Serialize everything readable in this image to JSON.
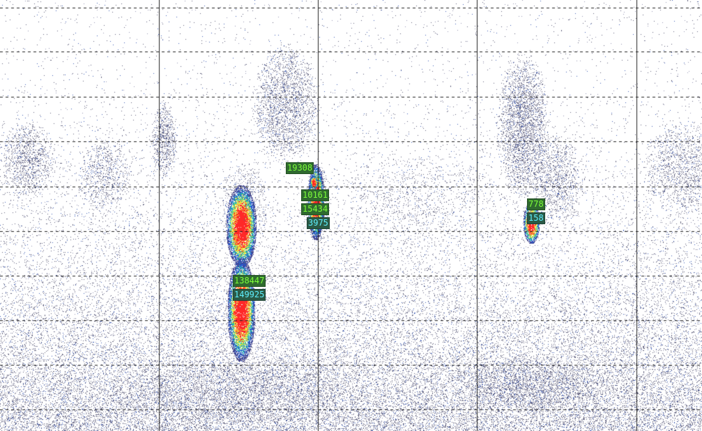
{
  "palette": {
    "background": "#ffffff",
    "grid": "#222222",
    "noise": "#5a5a7a",
    "echo_low": "#3a66c8",
    "echo_mid": "#21c3b4",
    "echo_high": "#e8e83a",
    "echo_peak": "#ff2a2a",
    "label_bg": "#2f6a2f",
    "label_green": "#7dff3a",
    "label_cyan": "#5ff0ff"
  },
  "labels": [
    {
      "text": "19308",
      "color": "green"
    },
    {
      "text": "10161",
      "color": "green"
    },
    {
      "text": "15434",
      "color": "green"
    },
    {
      "text": "3975",
      "color": "cyan"
    },
    {
      "text": "138447",
      "color": "green"
    },
    {
      "text": "149925",
      "color": "cyan"
    },
    {
      "text": "778",
      "color": "green"
    },
    {
      "text": "158",
      "color": "cyan"
    }
  ]
}
